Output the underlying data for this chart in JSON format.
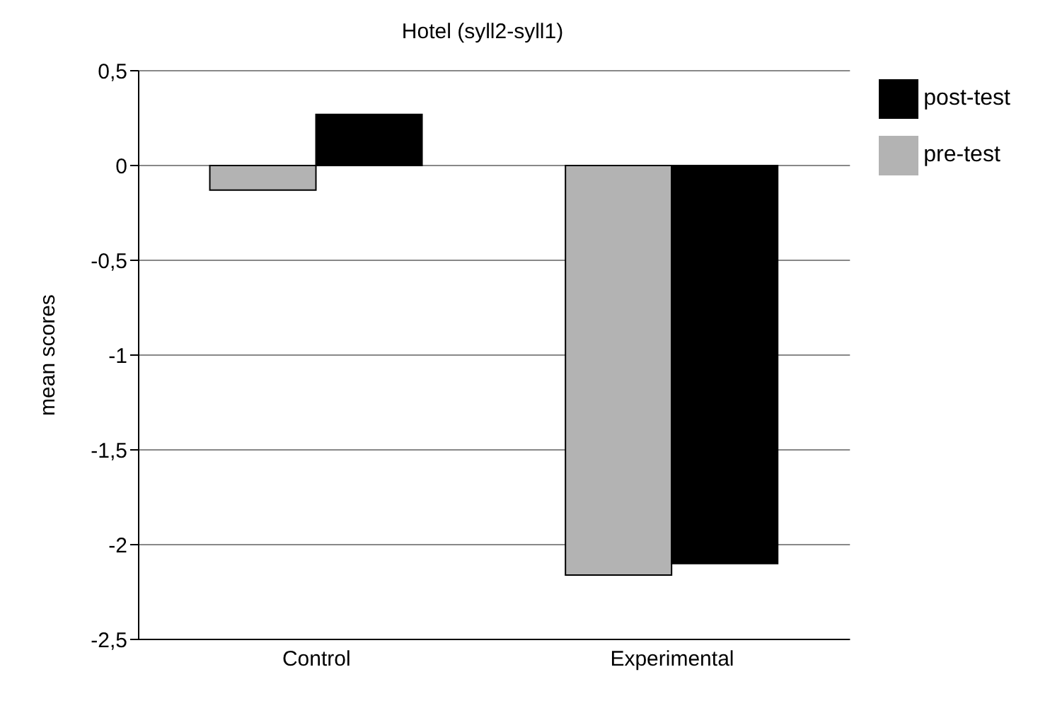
{
  "chart_data": {
    "type": "bar",
    "title": "Hotel (syll2-syll1)",
    "ylabel": "mean scores",
    "categories": [
      "Control",
      "Experimental"
    ],
    "series": [
      {
        "name": "pre-test",
        "color": "#b3b3b3",
        "values": [
          -0.13,
          -2.16
        ]
      },
      {
        "name": "post-test",
        "color": "#000000",
        "values": [
          0.27,
          -2.1
        ]
      }
    ],
    "ylim": [
      -2.5,
      0.5
    ],
    "yticks": [
      {
        "value": -2.5,
        "label": "-2,5"
      },
      {
        "value": -2,
        "label": "-2"
      },
      {
        "value": -1.5,
        "label": "-1,5"
      },
      {
        "value": -1,
        "label": "-1"
      },
      {
        "value": -0.5,
        "label": "-0,5"
      },
      {
        "value": 0,
        "label": "0"
      },
      {
        "value": 0.5,
        "label": "0,5"
      }
    ],
    "grid": "y",
    "legend": "right"
  }
}
